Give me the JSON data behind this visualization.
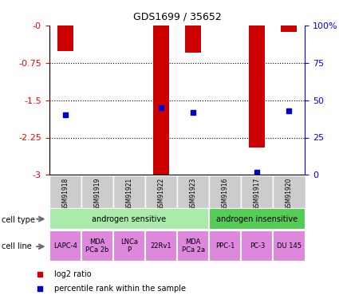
{
  "title": "GDS1699 / 35652",
  "samples": [
    "GSM91918",
    "GSM91919",
    "GSM91921",
    "GSM91922",
    "GSM91923",
    "GSM91916",
    "GSM91917",
    "GSM91920"
  ],
  "log2_ratios": [
    -0.52,
    0.0,
    0.0,
    -3.0,
    -0.55,
    0.0,
    -2.45,
    -0.13
  ],
  "percentile_ranks": [
    40,
    0,
    0,
    45,
    42,
    0,
    2,
    43
  ],
  "ylim_left": [
    -3.0,
    0.0
  ],
  "ylim_right": [
    0,
    100
  ],
  "left_ticks": [
    0,
    -0.75,
    -1.5,
    -2.25,
    -3.0
  ],
  "left_tick_labels": [
    "-0",
    "-0.75",
    "-1.5",
    "-2.25",
    "-3"
  ],
  "right_ticks": [
    0,
    25,
    50,
    75,
    100
  ],
  "right_tick_labels": [
    "0",
    "25",
    "50",
    "75",
    "100%"
  ],
  "cell_types": [
    {
      "label": "androgen sensitive",
      "color": "#aaeaaa",
      "start": 0,
      "end": 5
    },
    {
      "label": "androgen insensitive",
      "color": "#55cc55",
      "start": 5,
      "end": 8
    }
  ],
  "cell_lines": [
    "LAPC-4",
    "MDA\nPCa 2b",
    "LNCa\nP",
    "22Rv1",
    "MDA\nPCa 2a",
    "PPC-1",
    "PC-3",
    "DU 145"
  ],
  "cell_line_color": "#dd88dd",
  "sample_bg_color": "#cccccc",
  "bar_color": "#cc0000",
  "percentile_color": "#0000cc",
  "bar_width": 0.5,
  "n_samples": 8
}
